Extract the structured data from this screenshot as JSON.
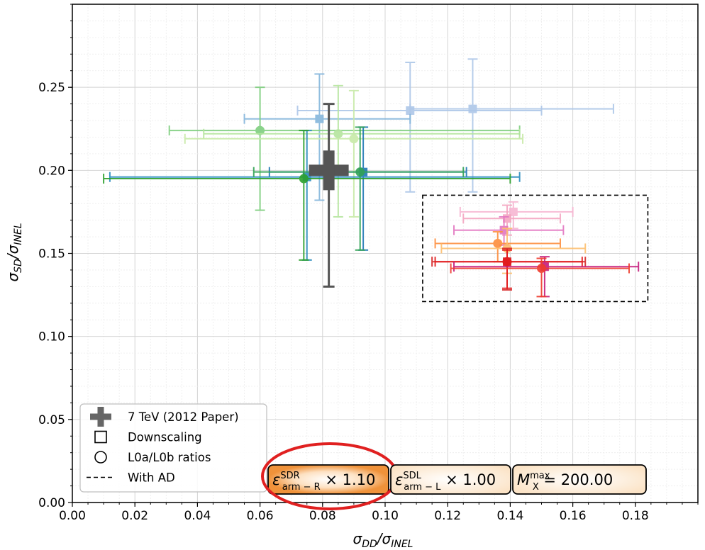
{
  "chart_data": {
    "type": "scatter",
    "xlabel_main": "σ",
    "xlabel_num": "DD",
    "xlabel_den": "INEL",
    "ylabel_main": "σ",
    "ylabel_num": "SD",
    "ylabel_den": "INEL",
    "xlim": [
      0.0,
      0.2
    ],
    "ylim": [
      0.0,
      0.3
    ],
    "x_ticks": [
      "0.00",
      "0.02",
      "0.04",
      "0.06",
      "0.08",
      "0.10",
      "0.12",
      "0.14",
      "0.16",
      "0.18"
    ],
    "y_ticks": [
      "0.00",
      "0.05",
      "0.10",
      "0.15",
      "0.20",
      "0.25"
    ],
    "grid": true,
    "legend": {
      "placement": "bottom-left",
      "entries": [
        {
          "marker": "plus",
          "label": "7 TeV (2012 Paper)"
        },
        {
          "marker": "square",
          "label": "Downscaling"
        },
        {
          "marker": "circle",
          "label": "L0a/L0b ratios"
        },
        {
          "marker": "dashed",
          "label": "With AD"
        }
      ]
    },
    "reference_point": {
      "x": 0.082,
      "y": 0.2,
      "xerr": [
        0.003,
        0.003
      ],
      "yerr": [
        0.07,
        0.04
      ],
      "color": "#555555"
    },
    "with_ad_box": {
      "x0": 0.112,
      "x1": 0.184,
      "y0": 0.121,
      "y1": 0.185
    },
    "points": [
      {
        "marker": "square",
        "color": "#aec7e8",
        "x": 0.128,
        "y": 0.237,
        "xl": 0.108,
        "xh": 0.173,
        "yl": 0.187,
        "yh": 0.267
      },
      {
        "marker": "square",
        "color": "#aec7e8",
        "x": 0.108,
        "y": 0.236,
        "xl": 0.072,
        "xh": 0.15,
        "yl": 0.187,
        "yh": 0.265
      },
      {
        "marker": "square",
        "color": "#85b6dc",
        "x": 0.079,
        "y": 0.231,
        "xl": 0.055,
        "xh": 0.108,
        "yl": 0.182,
        "yh": 0.258
      },
      {
        "marker": "circle",
        "color": "#7fcf7f",
        "x": 0.06,
        "y": 0.224,
        "xl": 0.031,
        "xh": 0.143,
        "yl": 0.176,
        "yh": 0.25
      },
      {
        "marker": "circle",
        "color": "#b5e59e",
        "x": 0.085,
        "y": 0.222,
        "xl": 0.042,
        "xh": 0.143,
        "yl": 0.172,
        "yh": 0.251
      },
      {
        "marker": "circle",
        "color": "#c8eaa8",
        "x": 0.09,
        "y": 0.219,
        "xl": 0.036,
        "xh": 0.144,
        "yl": 0.172,
        "yh": 0.248
      },
      {
        "marker": "square",
        "color": "#1f77b4",
        "x": 0.093,
        "y": 0.199,
        "xl": 0.063,
        "xh": 0.126,
        "yl": 0.152,
        "yh": 0.226
      },
      {
        "marker": "square",
        "color": "#2b8cbe",
        "x": 0.075,
        "y": 0.196,
        "xl": 0.012,
        "xh": 0.143,
        "yl": 0.146,
        "yh": 0.224
      },
      {
        "marker": "circle",
        "color": "#2ca02c",
        "x": 0.074,
        "y": 0.195,
        "xl": 0.01,
        "xh": 0.14,
        "yl": 0.146,
        "yh": 0.224
      },
      {
        "marker": "circle",
        "color": "#31a354",
        "x": 0.092,
        "y": 0.199,
        "xl": 0.058,
        "xh": 0.125,
        "yl": 0.152,
        "yh": 0.226
      },
      {
        "marker": "square",
        "color": "#f7b6d2",
        "x": 0.141,
        "y": 0.175,
        "xl": 0.124,
        "xh": 0.16,
        "yl": 0.165,
        "yh": 0.181
      },
      {
        "marker": "square",
        "color": "#f4a6c1",
        "x": 0.139,
        "y": 0.171,
        "xl": 0.125,
        "xh": 0.156,
        "yl": 0.161,
        "yh": 0.179
      },
      {
        "marker": "square",
        "color": "#e377c2",
        "x": 0.138,
        "y": 0.164,
        "xl": 0.122,
        "xh": 0.157,
        "yl": 0.155,
        "yh": 0.172
      },
      {
        "marker": "circle",
        "color": "#fd8d3c",
        "x": 0.136,
        "y": 0.156,
        "xl": 0.116,
        "xh": 0.156,
        "yl": 0.145,
        "yh": 0.163
      },
      {
        "marker": "circle",
        "color": "#fdbf6f",
        "x": 0.139,
        "y": 0.153,
        "xl": 0.118,
        "xh": 0.164,
        "yl": 0.138,
        "yh": 0.165
      },
      {
        "marker": "square",
        "color": "#d62728",
        "x": 0.139,
        "y": 0.145,
        "xl": 0.115,
        "xh": 0.164,
        "yl": 0.128,
        "yh": 0.153
      },
      {
        "marker": "circle",
        "color": "#e31a1c",
        "x": 0.139,
        "y": 0.145,
        "xl": 0.116,
        "xh": 0.163,
        "yl": 0.129,
        "yh": 0.152
      },
      {
        "marker": "square",
        "color": "#c51b7d",
        "x": 0.151,
        "y": 0.142,
        "xl": 0.122,
        "xh": 0.181,
        "yl": 0.124,
        "yh": 0.148
      },
      {
        "marker": "circle",
        "color": "#ef3b2c",
        "x": 0.15,
        "y": 0.141,
        "xl": 0.121,
        "xh": 0.178,
        "yl": 0.124,
        "yh": 0.147
      }
    ],
    "annotations": [
      {
        "sym": "ε",
        "sup": "SDR",
        "sub": "arm − R",
        "rest": " × 1.10",
        "highlighted": true
      },
      {
        "sym": "ε",
        "sup": "SDL",
        "sub": "arm − L",
        "rest": " × 1.00",
        "highlighted": false
      },
      {
        "sym": "M",
        "sup": "max",
        "sub": "X",
        "rest": " = 200.00",
        "highlighted": false
      }
    ],
    "highlight_color": "#e02020"
  }
}
